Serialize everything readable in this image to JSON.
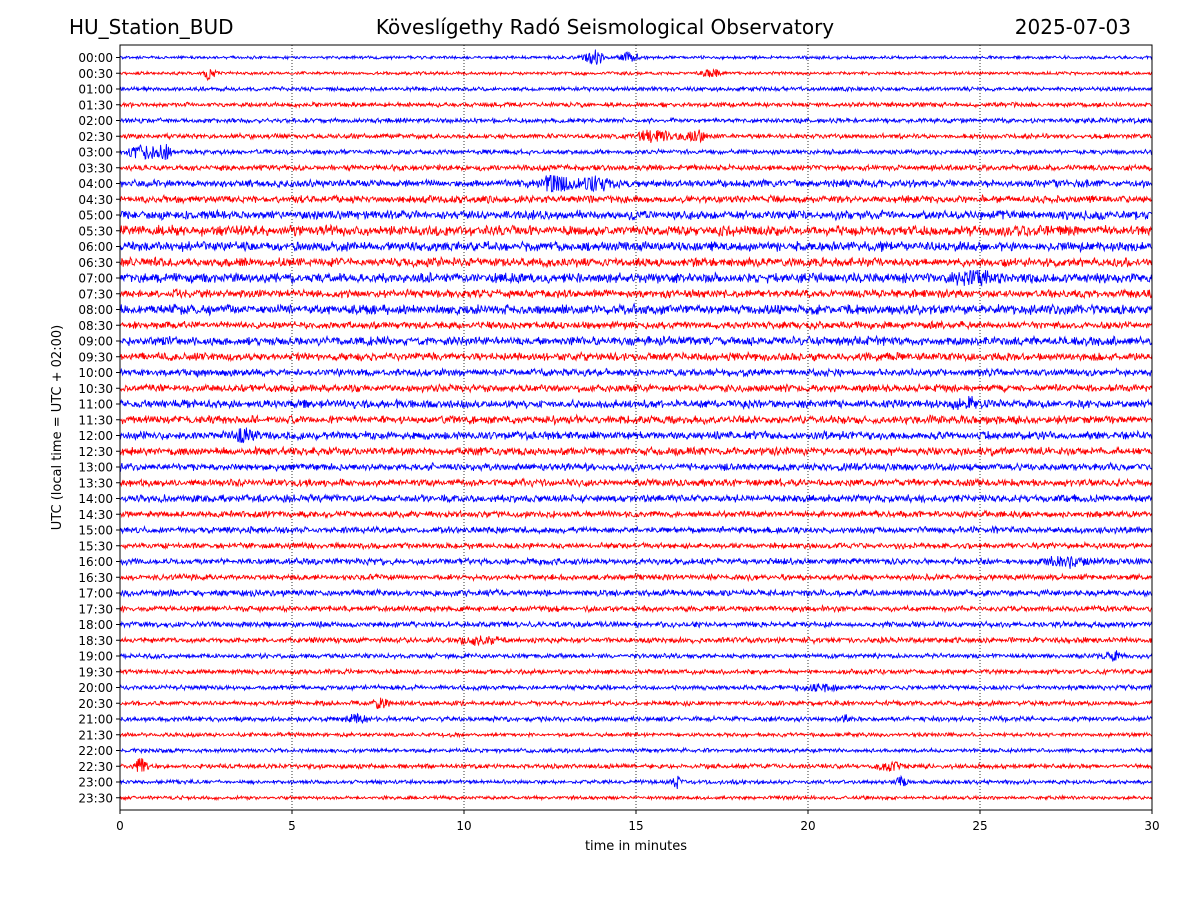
{
  "header": {
    "station": "HU_Station_BUD",
    "observatory": "Köveslígethy Radó Seismological Observatory",
    "date": "2025-07-03"
  },
  "chart_data": {
    "type": "line",
    "title": "Köveslígethy Radó Seismological Observatory",
    "xlabel": "time in minutes",
    "ylabel": "UTC (local time = UTC + 02:00)",
    "xlim": [
      0,
      30
    ],
    "xticks": [
      "0",
      "5",
      "10",
      "15",
      "20",
      "25",
      "30"
    ],
    "vertical_grid": "dotted at 5-minute intervals",
    "rows": [
      "00:00",
      "00:30",
      "01:00",
      "01:30",
      "02:00",
      "02:30",
      "03:00",
      "03:30",
      "04:00",
      "04:30",
      "05:00",
      "05:30",
      "06:00",
      "06:30",
      "07:00",
      "07:30",
      "08:00",
      "08:30",
      "09:00",
      "09:30",
      "10:00",
      "10:30",
      "11:00",
      "11:30",
      "12:00",
      "12:30",
      "13:00",
      "13:30",
      "14:00",
      "14:30",
      "15:00",
      "15:30",
      "16:00",
      "16:30",
      "17:00",
      "17:30",
      "18:00",
      "18:30",
      "19:00",
      "19:30",
      "20:00",
      "20:30",
      "21:00",
      "21:30",
      "22:00",
      "22:30",
      "23:00",
      "23:30"
    ],
    "trace_colors": [
      "#0000ff",
      "#ff0000"
    ],
    "noise_level": [
      0.2,
      0.2,
      0.25,
      0.28,
      0.3,
      0.3,
      0.3,
      0.35,
      0.45,
      0.45,
      0.55,
      0.65,
      0.6,
      0.55,
      0.6,
      0.5,
      0.6,
      0.45,
      0.55,
      0.5,
      0.45,
      0.45,
      0.5,
      0.5,
      0.5,
      0.5,
      0.45,
      0.45,
      0.45,
      0.4,
      0.4,
      0.35,
      0.4,
      0.35,
      0.4,
      0.35,
      0.35,
      0.35,
      0.3,
      0.3,
      0.3,
      0.3,
      0.3,
      0.25,
      0.25,
      0.3,
      0.25,
      0.22
    ],
    "events": [
      {
        "row": "00:00",
        "t": 13.8,
        "amp": 1.2,
        "width": 0.25
      },
      {
        "row": "00:00",
        "t": 14.8,
        "amp": 0.7,
        "width": 0.3
      },
      {
        "row": "00:30",
        "t": 2.6,
        "amp": 0.9,
        "width": 0.15
      },
      {
        "row": "00:30",
        "t": 17.2,
        "amp": 0.5,
        "width": 0.3
      },
      {
        "row": "02:30",
        "t": 15.5,
        "amp": 0.8,
        "width": 0.5
      },
      {
        "row": "02:30",
        "t": 16.7,
        "amp": 0.8,
        "width": 0.3
      },
      {
        "row": "03:00",
        "t": 0.7,
        "amp": 1.0,
        "width": 0.4
      },
      {
        "row": "03:00",
        "t": 1.3,
        "amp": 1.1,
        "width": 0.15
      },
      {
        "row": "04:00",
        "t": 12.6,
        "amp": 1.2,
        "width": 0.5
      },
      {
        "row": "04:00",
        "t": 13.8,
        "amp": 0.9,
        "width": 0.4
      },
      {
        "row": "07:00",
        "t": 24.8,
        "amp": 0.8,
        "width": 0.6
      },
      {
        "row": "11:00",
        "t": 24.6,
        "amp": 0.9,
        "width": 0.3
      },
      {
        "row": "12:00",
        "t": 3.6,
        "amp": 0.8,
        "width": 0.3
      },
      {
        "row": "16:00",
        "t": 27.5,
        "amp": 0.6,
        "width": 0.6
      },
      {
        "row": "18:30",
        "t": 10.5,
        "amp": 0.5,
        "width": 0.5
      },
      {
        "row": "19:00",
        "t": 28.9,
        "amp": 0.6,
        "width": 0.2
      },
      {
        "row": "20:00",
        "t": 20.4,
        "amp": 0.5,
        "width": 0.4
      },
      {
        "row": "20:30",
        "t": 7.6,
        "amp": 0.7,
        "width": 0.2
      },
      {
        "row": "21:00",
        "t": 6.9,
        "amp": 0.6,
        "width": 0.3
      },
      {
        "row": "21:00",
        "t": 21.1,
        "amp": 0.6,
        "width": 0.1
      },
      {
        "row": "22:30",
        "t": 0.6,
        "amp": 1.3,
        "width": 0.15
      },
      {
        "row": "22:30",
        "t": 22.3,
        "amp": 0.8,
        "width": 0.3
      },
      {
        "row": "23:00",
        "t": 16.2,
        "amp": 0.8,
        "width": 0.12
      },
      {
        "row": "23:00",
        "t": 22.7,
        "amp": 0.6,
        "width": 0.15
      }
    ]
  }
}
